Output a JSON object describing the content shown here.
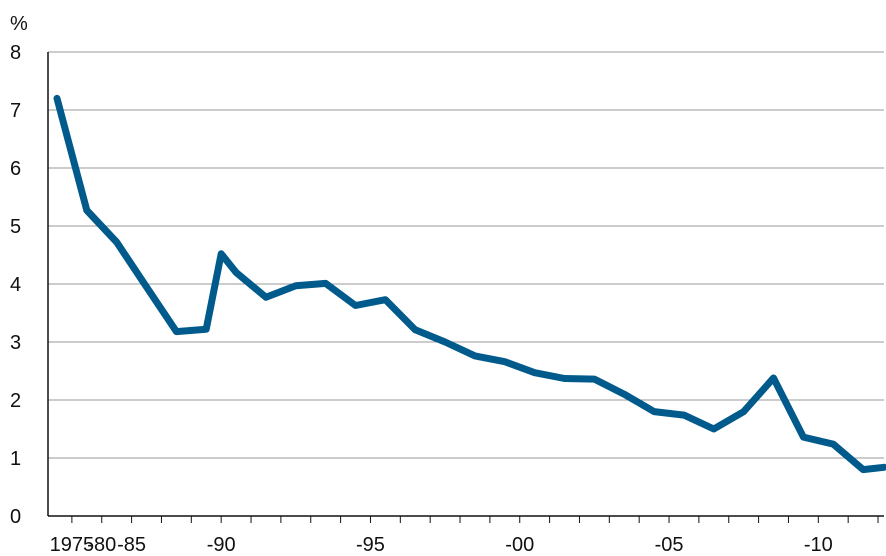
{
  "chart_data": {
    "type": "line",
    "unit": "%",
    "x_tick_labels": [
      {
        "x": 1975,
        "label": "1975"
      },
      {
        "x": 1976,
        "label": "-80"
      },
      {
        "x": 1977,
        "label": "-85"
      },
      {
        "x": 1980,
        "label": "-90"
      },
      {
        "x": 1985,
        "label": "-95"
      },
      {
        "x": 1990,
        "label": "-00"
      },
      {
        "x": 1995,
        "label": "-05"
      },
      {
        "x": 2000,
        "label": "-10"
      }
    ],
    "y_ticks": [
      0,
      1,
      2,
      3,
      4,
      5,
      6,
      7,
      8
    ],
    "ylim": [
      0,
      8
    ],
    "xlim": [
      1974.2,
      2002.2
    ],
    "grid": "horizontal",
    "line_color": "#005a8c",
    "series": [
      {
        "x": [
          1974.5,
          1975.5,
          1976.5,
          1977.5,
          1978.5,
          1979.5,
          1980.0,
          1980.5,
          1981.5,
          1982.5,
          1983.5,
          1984.5,
          1985.5,
          1986.5,
          1987.5,
          1988.5,
          1989.5,
          1990.5,
          1991.5,
          1992.5,
          1993.5,
          1994.5,
          1995.5,
          1996.5,
          1997.5,
          1998.5,
          1999.5,
          2000.5,
          2001.5,
          2002.2
        ],
        "values": [
          7.2,
          5.27,
          4.72,
          3.95,
          3.18,
          3.22,
          4.52,
          4.2,
          3.77,
          3.97,
          4.01,
          3.63,
          3.73,
          3.21,
          3.0,
          2.76,
          2.66,
          2.47,
          2.37,
          2.36,
          2.1,
          1.8,
          1.74,
          1.5,
          1.8,
          2.38,
          1.36,
          1.24,
          0.8,
          0.84
        ]
      }
    ]
  }
}
